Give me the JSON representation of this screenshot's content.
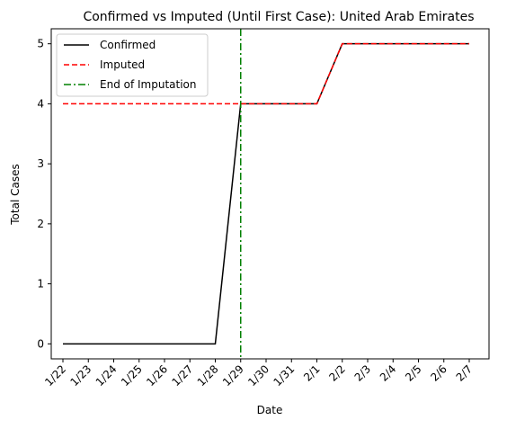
{
  "chart_data": {
    "type": "line",
    "title": "Confirmed vs Imputed (Until First Case): United Arab Emirates",
    "xlabel": "Date",
    "ylabel": "Total Cases",
    "categories": [
      "1/22",
      "1/23",
      "1/24",
      "1/25",
      "1/26",
      "1/27",
      "1/28",
      "1/29",
      "1/30",
      "1/31",
      "2/1",
      "2/2",
      "2/3",
      "2/4",
      "2/5",
      "2/6",
      "2/7"
    ],
    "ylim": [
      -0.25,
      5.25
    ],
    "yticks": [
      0,
      1,
      2,
      3,
      4,
      5
    ],
    "grid": false,
    "legend_position": "upper-left",
    "series": [
      {
        "name": "Confirmed",
        "color": "#000000",
        "style": "solid",
        "values": [
          0,
          0,
          0,
          0,
          0,
          0,
          0,
          4,
          4,
          4,
          4,
          5,
          5,
          5,
          5,
          5,
          5
        ]
      },
      {
        "name": "Imputed",
        "color": "#ff0000",
        "style": "dashed",
        "values": [
          4,
          4,
          4,
          4,
          4,
          4,
          4,
          4,
          4,
          4,
          4,
          5,
          5,
          5,
          5,
          5,
          5
        ]
      }
    ],
    "vline": {
      "name": "End of Imputation",
      "x": "1/29",
      "color": "#008000",
      "style": "dashdot"
    }
  }
}
